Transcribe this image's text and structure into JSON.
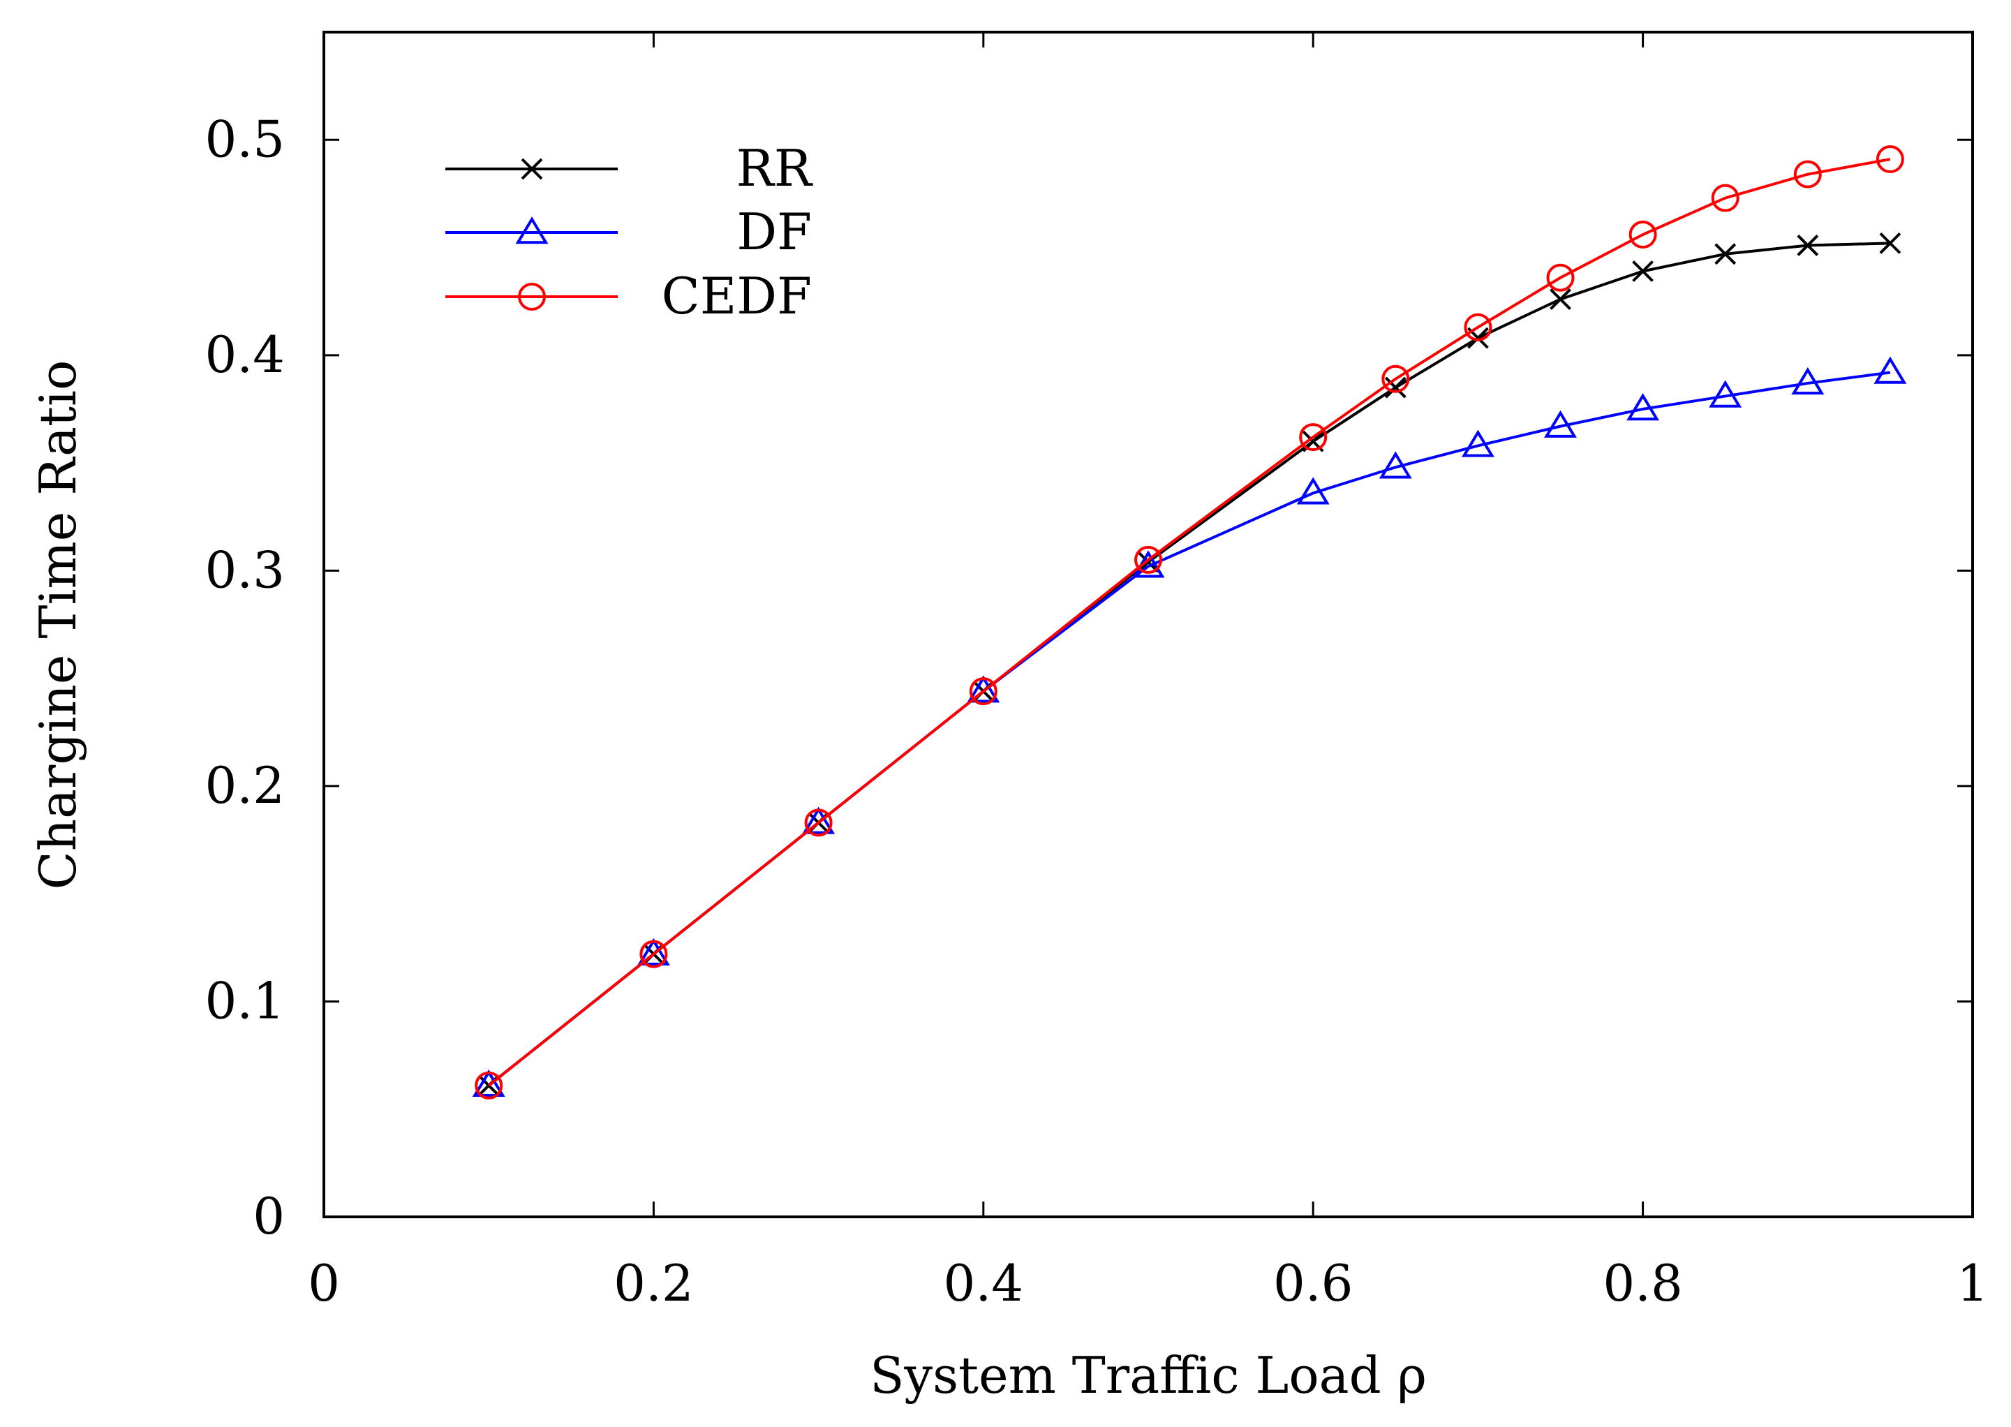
{
  "chart_data": {
    "type": "line",
    "title": "",
    "xlabel": "System Traffic Load ρ",
    "ylabel": "Chargine Time Ratio",
    "xlim": [
      0,
      1
    ],
    "ylim": [
      0,
      0.55
    ],
    "xticks": [
      0,
      0.2,
      0.4,
      0.6,
      0.8,
      1
    ],
    "xtick_labels": [
      "0",
      "0.2",
      "0.4",
      "0.6",
      "0.8",
      "1"
    ],
    "yticks": [
      0,
      0.1,
      0.2,
      0.3,
      0.4,
      0.5
    ],
    "ytick_labels": [
      "0",
      "0.1",
      "0.2",
      "0.3",
      "0.4",
      "0.5"
    ],
    "grid": false,
    "legend_position": "top-left",
    "x": [
      0.1,
      0.2,
      0.3,
      0.4,
      0.5,
      0.6,
      0.65,
      0.7,
      0.75,
      0.8,
      0.85,
      0.9,
      0.95
    ],
    "series": [
      {
        "name": "RR",
        "color": "#000000",
        "marker": "x",
        "values": [
          0.061,
          0.122,
          0.183,
          0.244,
          0.304,
          0.36,
          0.385,
          0.408,
          0.426,
          0.439,
          0.447,
          0.451,
          0.452
        ]
      },
      {
        "name": "DF",
        "color": "#0000ff",
        "marker": "triangle",
        "values": [
          0.061,
          0.122,
          0.183,
          0.244,
          0.302,
          0.336,
          0.348,
          0.358,
          0.367,
          0.375,
          0.381,
          0.387,
          0.392
        ]
      },
      {
        "name": "CEDF",
        "color": "#ff0000",
        "marker": "circle",
        "values": [
          0.061,
          0.122,
          0.183,
          0.244,
          0.305,
          0.362,
          0.389,
          0.413,
          0.436,
          0.456,
          0.473,
          0.484,
          0.491
        ]
      }
    ]
  }
}
